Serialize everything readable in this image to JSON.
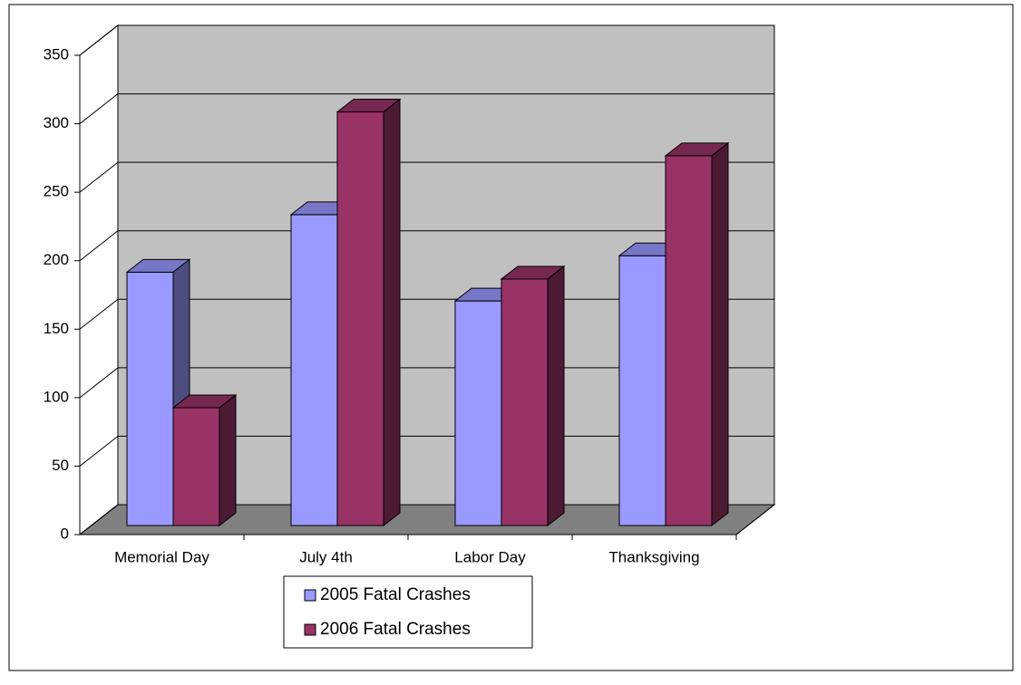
{
  "chart_data": {
    "type": "bar3d",
    "categories": [
      "Memorial Day",
      "July 4th",
      "Labor Day",
      "Thanksgiving"
    ],
    "series": [
      {
        "name": "2005 Fatal Crashes",
        "color": "#9999ff",
        "values": [
          185,
          227,
          164,
          197
        ]
      },
      {
        "name": "2006 Fatal Crashes",
        "color": "#993366",
        "values": [
          86,
          302,
          180,
          270
        ]
      }
    ],
    "ylim": [
      0,
      350
    ],
    "yticks": [
      0,
      50,
      100,
      150,
      200,
      250,
      300,
      350
    ],
    "grid": true,
    "legend": "bottom"
  }
}
